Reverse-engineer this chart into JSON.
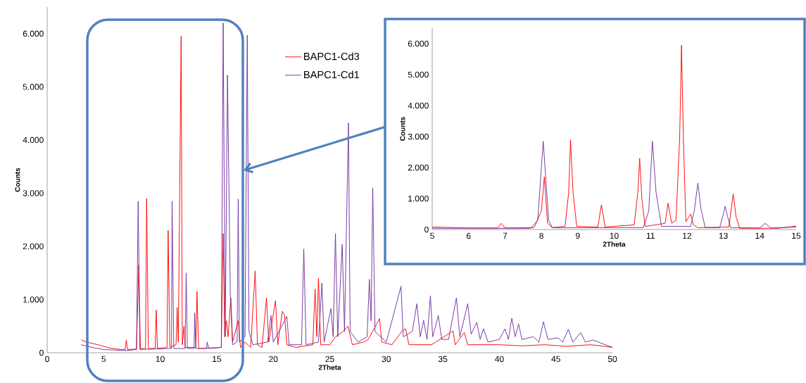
{
  "chart_data": [
    {
      "type": "line",
      "xlabel": "2Theta",
      "ylabel": "Counts",
      "xlim": [
        0,
        50
      ],
      "ylim": [
        0,
        6500
      ],
      "xticks": [
        0,
        5,
        10,
        15,
        20,
        25,
        30,
        35,
        40,
        45,
        50
      ],
      "yticks": [
        0,
        {
          "value": 1000,
          "label": "1.000"
        },
        {
          "value": 2000,
          "label": "2.000"
        },
        {
          "value": 3000,
          "label": "3.000"
        },
        {
          "value": 4000,
          "label": "4.000"
        },
        {
          "value": 5000,
          "label": "5.000"
        },
        {
          "value": 6000,
          "label": "6.000"
        }
      ],
      "legend": "top",
      "marker": "none",
      "line_style": "solid",
      "series": [
        {
          "name": "BAPC1-Cd3",
          "color": "#ff0000",
          "x": [
            3.0,
            3.5,
            4.5,
            5.5,
            6.5,
            6.9,
            7.0,
            7.1,
            7.9,
            8.1,
            8.25,
            8.7,
            8.8,
            8.95,
            9.55,
            9.65,
            9.75,
            10.6,
            10.7,
            10.85,
            11.4,
            11.5,
            11.6,
            11.85,
            11.95,
            12.1,
            12.2,
            13.15,
            13.25,
            13.4,
            15.4,
            15.57,
            15.7,
            15.85,
            16.0,
            16.25,
            16.4,
            16.9,
            17.1,
            17.5,
            18.0,
            18.4,
            18.6,
            19.0,
            19.4,
            19.6,
            20.2,
            20.4,
            20.8,
            21.0,
            21.2,
            22.0,
            23.5,
            23.7,
            23.85,
            24.0,
            24.2,
            25.0,
            25.5,
            26.2,
            26.6,
            27.0,
            28.0,
            28.4,
            29.4,
            29.6,
            30.5,
            31.4,
            31.7,
            32.0,
            34.0,
            35.9,
            36.1,
            36.9,
            37.2,
            40,
            42,
            44,
            46,
            48,
            49,
            50
          ],
          "values": [
            240,
            200,
            150,
            90,
            60,
            60,
            240,
            60,
            70,
            1650,
            80,
            80,
            2900,
            80,
            80,
            800,
            80,
            100,
            2300,
            100,
            150,
            850,
            200,
            5950,
            150,
            500,
            100,
            100,
            1150,
            80,
            100,
            2240,
            300,
            600,
            300,
            1030,
            200,
            600,
            100,
            200,
            100,
            1540,
            150,
            100,
            1030,
            200,
            980,
            150,
            780,
            700,
            150,
            100,
            150,
            1200,
            300,
            1400,
            150,
            150,
            300,
            400,
            500,
            150,
            200,
            250,
            640,
            200,
            150,
            410,
            450,
            150,
            150,
            410,
            150,
            380,
            150,
            150,
            130,
            150,
            120,
            150,
            130,
            100
          ]
        },
        {
          "name": "BAPC1-Cd1",
          "color": "#7030a0",
          "x": [
            3.0,
            4,
            5,
            7,
            7.9,
            8.05,
            8.2,
            11.0,
            11.05,
            11.2,
            12.2,
            12.3,
            12.4,
            13.0,
            13.05,
            13.15,
            14.1,
            14.15,
            14.3,
            15.4,
            15.57,
            15.75,
            15.95,
            16.2,
            16.4,
            16.8,
            16.9,
            17.0,
            17.5,
            17.7,
            17.85,
            18.2,
            19.5,
            19.8,
            20.0,
            21.2,
            21.4,
            22.5,
            22.7,
            22.9,
            24.0,
            24.3,
            24.5,
            25.1,
            25.3,
            25.5,
            25.7,
            26.1,
            26.3,
            26.65,
            26.8,
            27.5,
            28.3,
            28.5,
            28.65,
            28.8,
            29.0,
            30.0,
            31.3,
            31.5,
            32.3,
            32.7,
            33.0,
            33.3,
            33.6,
            33.9,
            34.1,
            34.6,
            34.9,
            35.5,
            36.2,
            36.5,
            37.2,
            37.5,
            38.0,
            38.3,
            38.6,
            39.0,
            40.0,
            40.5,
            40.8,
            41.1,
            41.4,
            41.7,
            42.0,
            43.0,
            43.5,
            43.9,
            44.3,
            45.2,
            45.6,
            46.1,
            46.5,
            47.2,
            47.6,
            48.3,
            49,
            50
          ],
          "values": [
            150,
            100,
            60,
            40,
            60,
            2850,
            60,
            80,
            2850,
            80,
            80,
            1500,
            80,
            80,
            750,
            80,
            80,
            200,
            80,
            100,
            6200,
            300,
            5220,
            1100,
            150,
            200,
            2890,
            200,
            300,
            5970,
            400,
            150,
            200,
            700,
            200,
            680,
            150,
            150,
            1950,
            150,
            200,
            1310,
            200,
            830,
            300,
            2240,
            300,
            2040,
            400,
            4320,
            400,
            200,
            300,
            1380,
            600,
            3100,
            400,
            200,
            1250,
            300,
            400,
            920,
            300,
            610,
            250,
            1070,
            300,
            700,
            250,
            250,
            1030,
            300,
            920,
            350,
            570,
            250,
            450,
            200,
            250,
            450,
            250,
            650,
            300,
            540,
            250,
            300,
            200,
            580,
            250,
            280,
            200,
            440,
            200,
            380,
            200,
            240,
            180,
            100
          ]
        }
      ]
    },
    {
      "type": "line",
      "xlabel": "2Theta",
      "ylabel": "Counts",
      "xlim": [
        5,
        15
      ],
      "ylim": [
        0,
        6500
      ],
      "xticks": [
        5,
        6,
        7,
        8,
        9,
        10,
        11,
        12,
        13,
        14,
        15
      ],
      "yticks": [
        0,
        {
          "value": 1000,
          "label": "1.000"
        },
        {
          "value": 2000,
          "label": "2.000"
        },
        {
          "value": 3000,
          "label": "3.000"
        },
        {
          "value": 4000,
          "label": "4.000"
        },
        {
          "value": 5000,
          "label": "5.000"
        },
        {
          "value": 6000,
          "label": "6.000"
        }
      ],
      "marker": "none",
      "line_style": "solid",
      "series": [
        {
          "color": "#ff0000",
          "x": [
            5,
            6,
            6.8,
            6.9,
            7.0,
            7.8,
            8.0,
            8.08,
            8.17,
            8.3,
            8.65,
            8.75,
            8.8,
            8.87,
            8.97,
            9.55,
            9.65,
            9.75,
            10.55,
            10.65,
            10.7,
            10.76,
            10.85,
            11.4,
            11.48,
            11.58,
            11.7,
            11.8,
            11.85,
            11.9,
            11.97,
            12.05,
            12.1,
            12.18,
            12.3,
            13.15,
            13.22,
            13.27,
            13.35,
            13.45,
            14.5,
            15
          ],
          "values": [
            80,
            50,
            50,
            200,
            50,
            60,
            600,
            1700,
            200,
            60,
            100,
            1200,
            2900,
            1200,
            100,
            80,
            800,
            80,
            150,
            1200,
            2300,
            1000,
            100,
            200,
            850,
            200,
            300,
            3000,
            5950,
            3000,
            250,
            400,
            500,
            150,
            60,
            80,
            700,
            1150,
            400,
            40,
            40,
            110
          ]
        },
        {
          "color": "#7030a0",
          "x": [
            5,
            7.7,
            7.9,
            8.0,
            8.05,
            8.1,
            8.2,
            8.3,
            10.8,
            10.95,
            11.05,
            11.15,
            11.3,
            12.1,
            12.2,
            12.3,
            12.38,
            12.5,
            12.9,
            13.0,
            13.05,
            13.12,
            13.2,
            14.0,
            14.15,
            14.3,
            15
          ],
          "values": [
            40,
            40,
            300,
            2000,
            2850,
            2000,
            300,
            60,
            60,
            600,
            2850,
            1200,
            100,
            100,
            600,
            1500,
            700,
            60,
            60,
            500,
            750,
            400,
            60,
            50,
            200,
            50,
            80
          ]
        }
      ]
    }
  ]
}
